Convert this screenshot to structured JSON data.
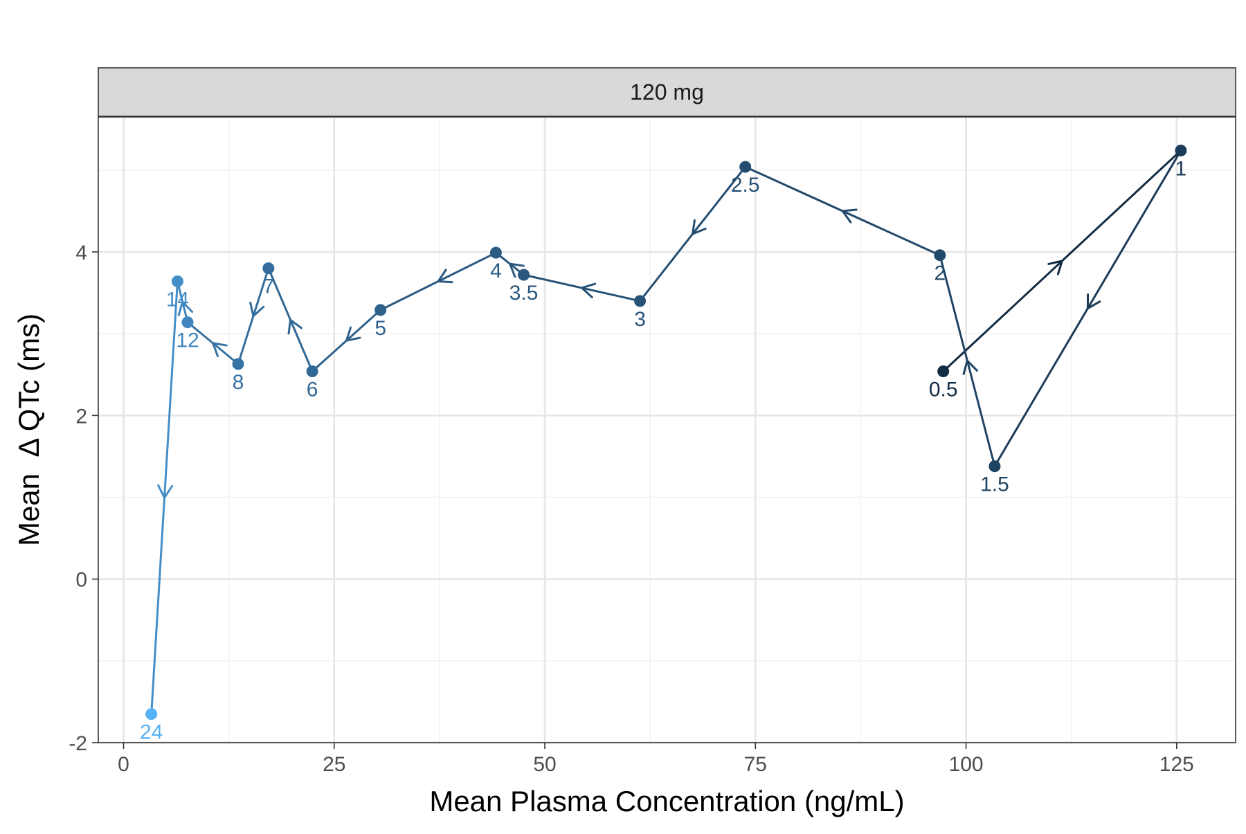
{
  "chart_data": {
    "type": "line",
    "panel": "120 mg",
    "xlabel": "Mean Plasma Concentration (ng/mL)",
    "ylabel": "Mean  Δ QTc (ms)",
    "xlim": [
      -3,
      132
    ],
    "ylim": [
      -2,
      5.65
    ],
    "x_ticks": [
      0,
      25,
      50,
      75,
      100,
      125
    ],
    "y_ticks": [
      -2,
      0,
      2,
      4
    ],
    "grid": true,
    "legend": "none",
    "colors": {
      "start": "#132b43",
      "end": "#56b1f7"
    },
    "points": [
      {
        "label": "0.5",
        "x": 97.3,
        "y": 2.54
      },
      {
        "label": "1",
        "x": 125.5,
        "y": 5.24
      },
      {
        "label": "1.5",
        "x": 103.4,
        "y": 1.38
      },
      {
        "label": "2",
        "x": 96.9,
        "y": 3.96
      },
      {
        "label": "2.5",
        "x": 73.8,
        "y": 5.04
      },
      {
        "label": "3",
        "x": 61.3,
        "y": 3.4
      },
      {
        "label": "3.5",
        "x": 47.5,
        "y": 3.72
      },
      {
        "label": "4",
        "x": 44.2,
        "y": 3.99
      },
      {
        "label": "5",
        "x": 30.5,
        "y": 3.29
      },
      {
        "label": "6",
        "x": 22.4,
        "y": 2.54
      },
      {
        "label": "7",
        "x": 17.2,
        "y": 3.8
      },
      {
        "label": "8",
        "x": 13.6,
        "y": 2.63
      },
      {
        "label": "12",
        "x": 7.6,
        "y": 3.14
      },
      {
        "label": "14",
        "x": 6.4,
        "y": 3.64
      },
      {
        "label": "24",
        "x": 3.3,
        "y": -1.65
      }
    ]
  }
}
